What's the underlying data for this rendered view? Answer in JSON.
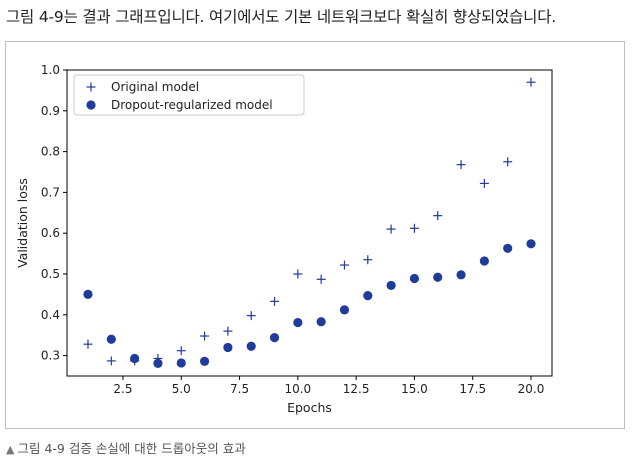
{
  "intro_text": "그림 4-9는 결과 그래프입니다. 여기에서도 기본 네트워크보다 확실히 향상되었습니다.",
  "caption": {
    "marker": "▲",
    "text": "그림 4-9 검증 손실에 대한 드롭아웃의 효과"
  },
  "colors": {
    "series": "#1f3c9a",
    "frame": "#bfbfbf"
  },
  "chart_data": {
    "type": "scatter",
    "title": "",
    "xlabel": "Epochs",
    "ylabel": "Validation loss",
    "xlim": [
      0.1,
      20.9
    ],
    "ylim": [
      0.25,
      1.0
    ],
    "xticks": [
      2.5,
      5.0,
      7.5,
      10.0,
      12.5,
      15.0,
      17.5,
      20.0
    ],
    "xtick_labels": [
      "2.5",
      "5.0",
      "7.5",
      "10.0",
      "12.5",
      "15.0",
      "17.5",
      "20.0"
    ],
    "yticks": [
      0.3,
      0.4,
      0.5,
      0.6,
      0.7,
      0.8,
      0.9,
      1.0
    ],
    "ytick_labels": [
      "0.3",
      "0.4",
      "0.5",
      "0.6",
      "0.7",
      "0.8",
      "0.9",
      "1.0"
    ],
    "legend_position": "top-left",
    "grid": false,
    "series": [
      {
        "name": "Original model",
        "marker": "plus",
        "x": [
          1,
          2,
          3,
          4,
          5,
          6,
          7,
          8,
          9,
          10,
          11,
          12,
          13,
          14,
          15,
          16,
          17,
          18,
          19,
          20
        ],
        "values": [
          0.328,
          0.287,
          0.287,
          0.293,
          0.312,
          0.348,
          0.36,
          0.398,
          0.433,
          0.5,
          0.487,
          0.522,
          0.535,
          0.61,
          0.612,
          0.643,
          0.768,
          0.722,
          0.775,
          0.97
        ]
      },
      {
        "name": "Dropout-regularized model",
        "marker": "circle",
        "x": [
          1,
          2,
          3,
          4,
          5,
          6,
          7,
          8,
          9,
          10,
          11,
          12,
          13,
          14,
          15,
          16,
          17,
          18,
          19,
          20
        ],
        "values": [
          0.45,
          0.34,
          0.293,
          0.281,
          0.282,
          0.286,
          0.32,
          0.323,
          0.344,
          0.381,
          0.383,
          0.412,
          0.447,
          0.472,
          0.489,
          0.492,
          0.498,
          0.532,
          0.563,
          0.574
        ]
      }
    ]
  }
}
